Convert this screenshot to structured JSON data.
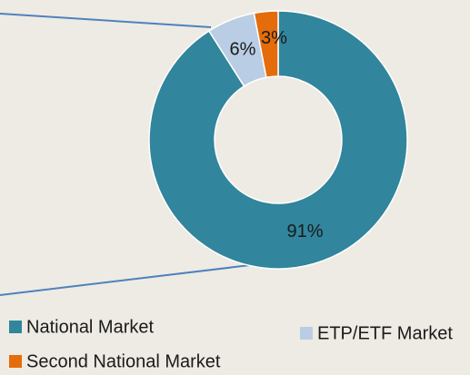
{
  "chart_data": {
    "type": "donut",
    "categories": [
      "National Market",
      "ETP/ETF Market",
      "Second National Market"
    ],
    "values": [
      91,
      6,
      3
    ],
    "value_labels": [
      "91%",
      "6%",
      "3%"
    ],
    "colors": [
      "#31859c",
      "#b9cde5",
      "#e46c0a"
    ]
  }
}
